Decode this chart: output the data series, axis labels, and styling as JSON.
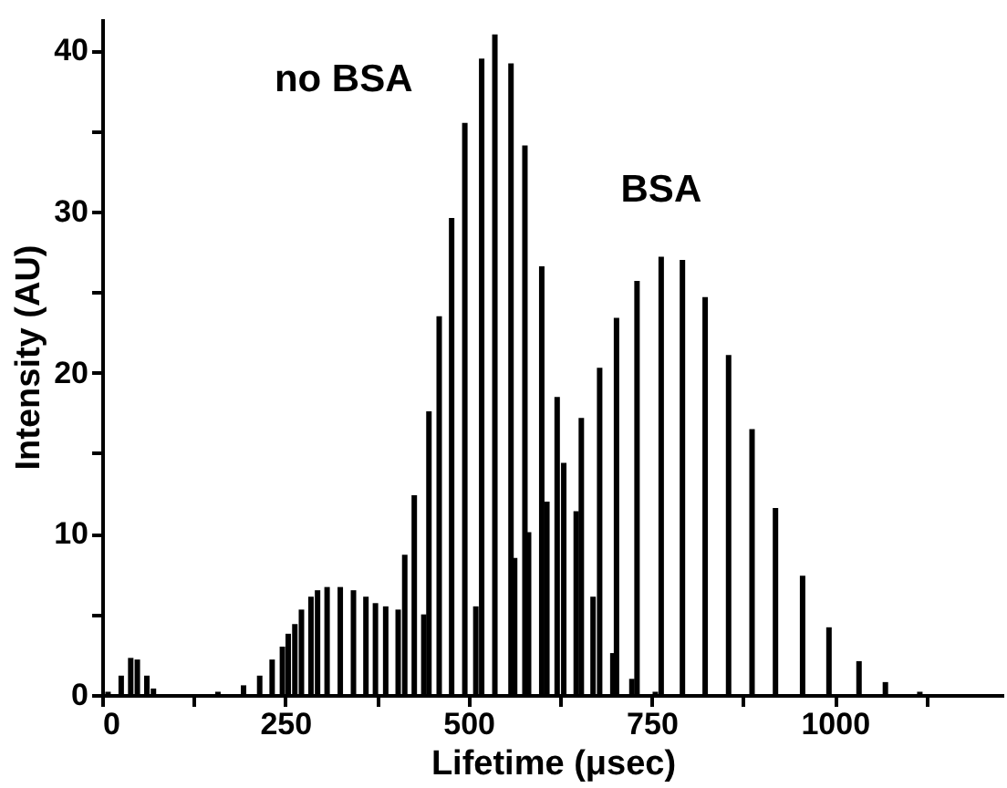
{
  "chart_data": {
    "type": "bar",
    "xlabel": "Lifetime (μsec)",
    "ylabel": "Intensity (AU)",
    "xlim": [
      0,
      1230
    ],
    "xticks": [
      0,
      {
        "value": 125,
        "label": null
      },
      250,
      {
        "value": 375,
        "label": null
      },
      500,
      {
        "value": 625,
        "label": null
      },
      750,
      {
        "value": 875,
        "label": null
      },
      1000,
      {
        "value": 1125,
        "label": null
      }
    ],
    "ylim": [
      0,
      42
    ],
    "yticks": [
      0,
      {
        "value": 5,
        "label": null
      },
      10,
      {
        "value": 15,
        "label": null
      },
      20,
      {
        "value": 25,
        "label": null
      },
      30,
      {
        "value": 35,
        "label": null
      },
      40
    ],
    "grid": false,
    "series": [
      {
        "name": "no BSA",
        "color": "#000000",
        "x": [
          8,
          26,
          39,
          48,
          61,
          70,
          158,
          193,
          215,
          232,
          246,
          254,
          263,
          272,
          285,
          294,
          307,
          325,
          343,
          360,
          373,
          387,
          404,
          413,
          426,
          439,
          446,
          460,
          477,
          495,
          510,
          518,
          536,
          558,
          577,
          600,
          621,
          647,
          670,
          697,
          723,
          755
        ],
        "values": [
          0.2,
          1.2,
          2.3,
          2.2,
          1.2,
          0.4,
          0.2,
          0.6,
          1.2,
          2.2,
          3.0,
          3.8,
          4.4,
          5.3,
          6.1,
          6.5,
          6.7,
          6.7,
          6.5,
          6.1,
          5.7,
          5.5,
          5.3,
          8.7,
          12.4,
          5.0,
          17.6,
          23.5,
          29.6,
          35.5,
          5.5,
          39.5,
          41,
          39.2,
          34.1,
          26.6,
          18.5,
          11.4,
          6.1,
          2.6,
          1.0,
          0.2
        ]
      },
      {
        "name": "BSA",
        "color": "#000000",
        "x": [
          563,
          582,
          607,
          630,
          654,
          679,
          702,
          730,
          763,
          792,
          823,
          855,
          887,
          919,
          956,
          992,
          1033,
          1069,
          1116
        ],
        "values": [
          8.5,
          10.1,
          12.0,
          14.4,
          17.2,
          20.3,
          23.4,
          25.7,
          27.2,
          27.0,
          24.7,
          21.1,
          16.5,
          11.6,
          7.4,
          4.2,
          2.1,
          0.8,
          0.2
        ]
      }
    ]
  }
}
